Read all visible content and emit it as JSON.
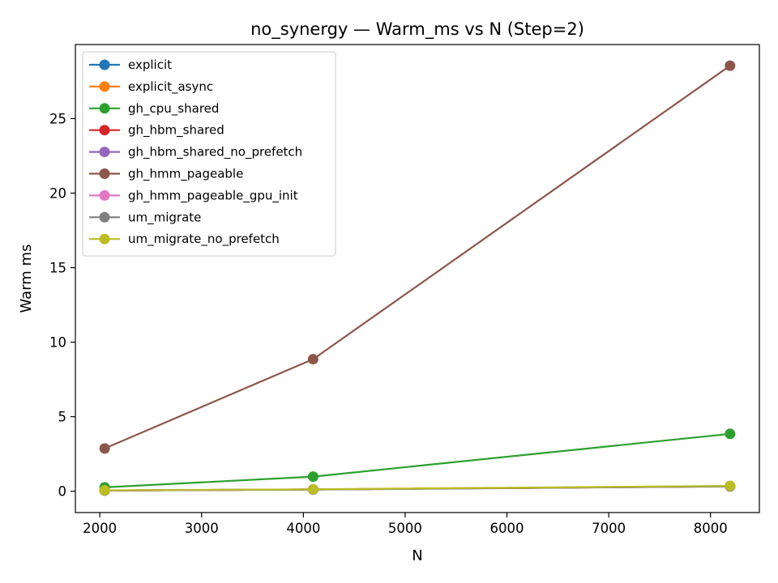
{
  "chart_data": {
    "type": "line",
    "title": "no_synergy — Warm_ms vs N (Step=2)",
    "xlabel": "N",
    "ylabel": "Warm ms",
    "xlim": [
      1760,
      8480
    ],
    "ylim": [
      -1.43,
      29.97
    ],
    "xticks": [
      2000,
      3000,
      4000,
      5000,
      6000,
      7000,
      8000
    ],
    "yticks": [
      0,
      5,
      10,
      15,
      20,
      25
    ],
    "legend_position": "top-left",
    "grid": false,
    "x": [
      2048,
      4096,
      8192
    ],
    "series": [
      {
        "name": "explicit",
        "color": "#1f77b4",
        "values": [
          0.05,
          0.12,
          0.33
        ]
      },
      {
        "name": "explicit_async",
        "color": "#ff7f0e",
        "values": [
          0.05,
          0.12,
          0.33
        ]
      },
      {
        "name": "gh_cpu_shared",
        "color": "#2ca02c",
        "values": [
          0.26,
          0.98,
          3.85
        ]
      },
      {
        "name": "gh_hbm_shared",
        "color": "#d62728",
        "values": [
          0.05,
          0.12,
          0.33
        ]
      },
      {
        "name": "gh_hbm_shared_no_prefetch",
        "color": "#9467bd",
        "values": [
          0.05,
          0.12,
          0.34
        ]
      },
      {
        "name": "gh_hmm_pageable",
        "color": "#8c564b",
        "values": [
          2.87,
          8.86,
          28.55
        ]
      },
      {
        "name": "gh_hmm_pageable_gpu_init",
        "color": "#e377c2",
        "values": [
          0.05,
          0.12,
          0.34
        ]
      },
      {
        "name": "um_migrate",
        "color": "#7f7f7f",
        "values": [
          0.05,
          0.11,
          0.32
        ]
      },
      {
        "name": "um_migrate_no_prefetch",
        "color": "#bcbd22",
        "values": [
          0.06,
          0.13,
          0.36
        ]
      }
    ]
  }
}
